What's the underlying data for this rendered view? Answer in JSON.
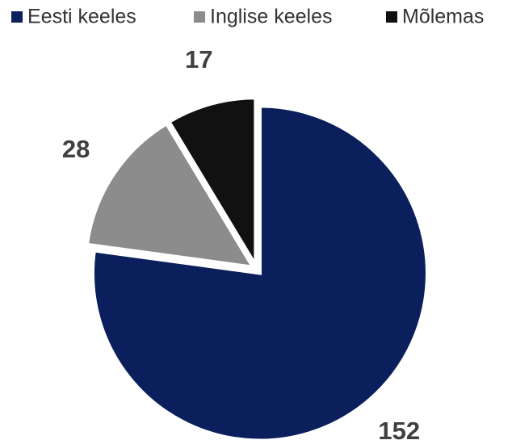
{
  "chart_data": {
    "type": "pie",
    "categories": [
      "Eesti keeles",
      "Inglise keeles",
      "Mõlemas"
    ],
    "values": [
      152,
      28,
      17
    ],
    "colors": [
      "#0a1f5c",
      "#8c8c8c",
      "#111111"
    ],
    "legend": "top"
  }
}
